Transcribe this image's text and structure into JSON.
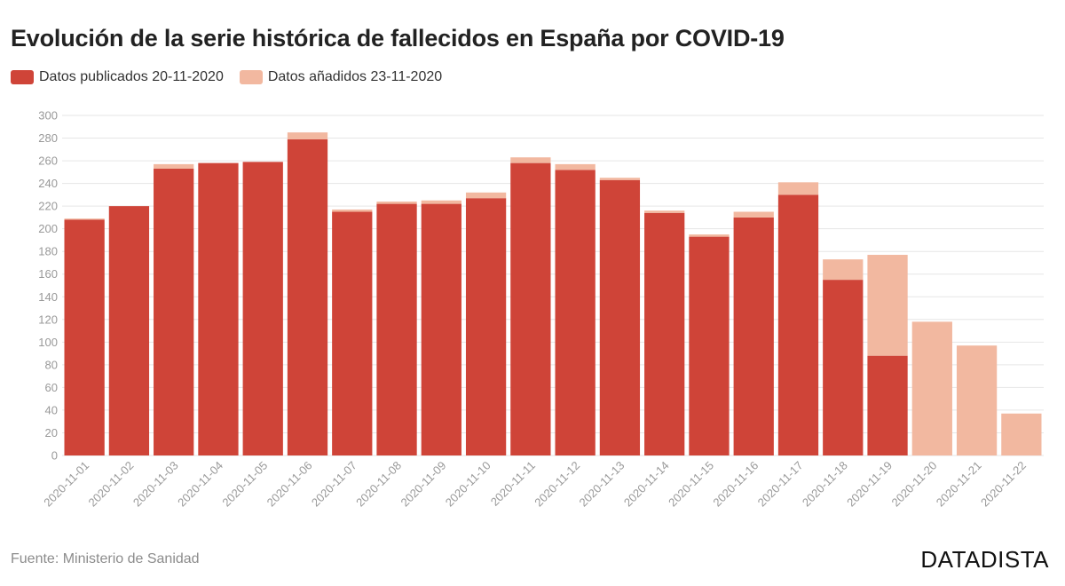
{
  "chart_data": {
    "type": "bar",
    "stacked": true,
    "title": "Evolución de la serie histórica de fallecidos en España por COVID-19",
    "xlabel": "",
    "ylabel": "",
    "ylim": [
      0,
      300
    ],
    "yticks": [
      0,
      20,
      40,
      60,
      80,
      100,
      120,
      140,
      160,
      180,
      200,
      220,
      240,
      260,
      280,
      300
    ],
    "grid": true,
    "legend_position": "top-left",
    "categories": [
      "2020-11-01",
      "2020-11-02",
      "2020-11-03",
      "2020-11-04",
      "2020-11-05",
      "2020-11-06",
      "2020-11-07",
      "2020-11-08",
      "2020-11-09",
      "2020-11-10",
      "2020-11-11",
      "2020-11-12",
      "2020-11-13",
      "2020-11-14",
      "2020-11-15",
      "2020-11-16",
      "2020-11-17",
      "2020-11-18",
      "2020-11-19",
      "2020-11-20",
      "2020-11-21",
      "2020-11-22"
    ],
    "series": [
      {
        "name": "Datos publicados 20-11-2020",
        "color": "#cf4438",
        "values": [
          208,
          220,
          253,
          258,
          259,
          279,
          215,
          222,
          222,
          227,
          258,
          252,
          243,
          214,
          193,
          210,
          230,
          155,
          88,
          0,
          0,
          0
        ]
      },
      {
        "name": "Datos añadidos 23-11-2020",
        "color": "#f2b8a0",
        "values": [
          1,
          0,
          4,
          0,
          0,
          6,
          2,
          2,
          3,
          5,
          5,
          5,
          2,
          2,
          2,
          5,
          11,
          18,
          89,
          118,
          97,
          37
        ]
      }
    ]
  },
  "legend": {
    "published_label": "Datos publicados 20-11-2020",
    "added_label": "Datos añadidos 23-11-2020",
    "published_color": "#cf4438",
    "added_color": "#f2b8a0"
  },
  "footer": {
    "source": "Fuente: Ministerio de Sanidad",
    "brand": "DATADISTA"
  }
}
